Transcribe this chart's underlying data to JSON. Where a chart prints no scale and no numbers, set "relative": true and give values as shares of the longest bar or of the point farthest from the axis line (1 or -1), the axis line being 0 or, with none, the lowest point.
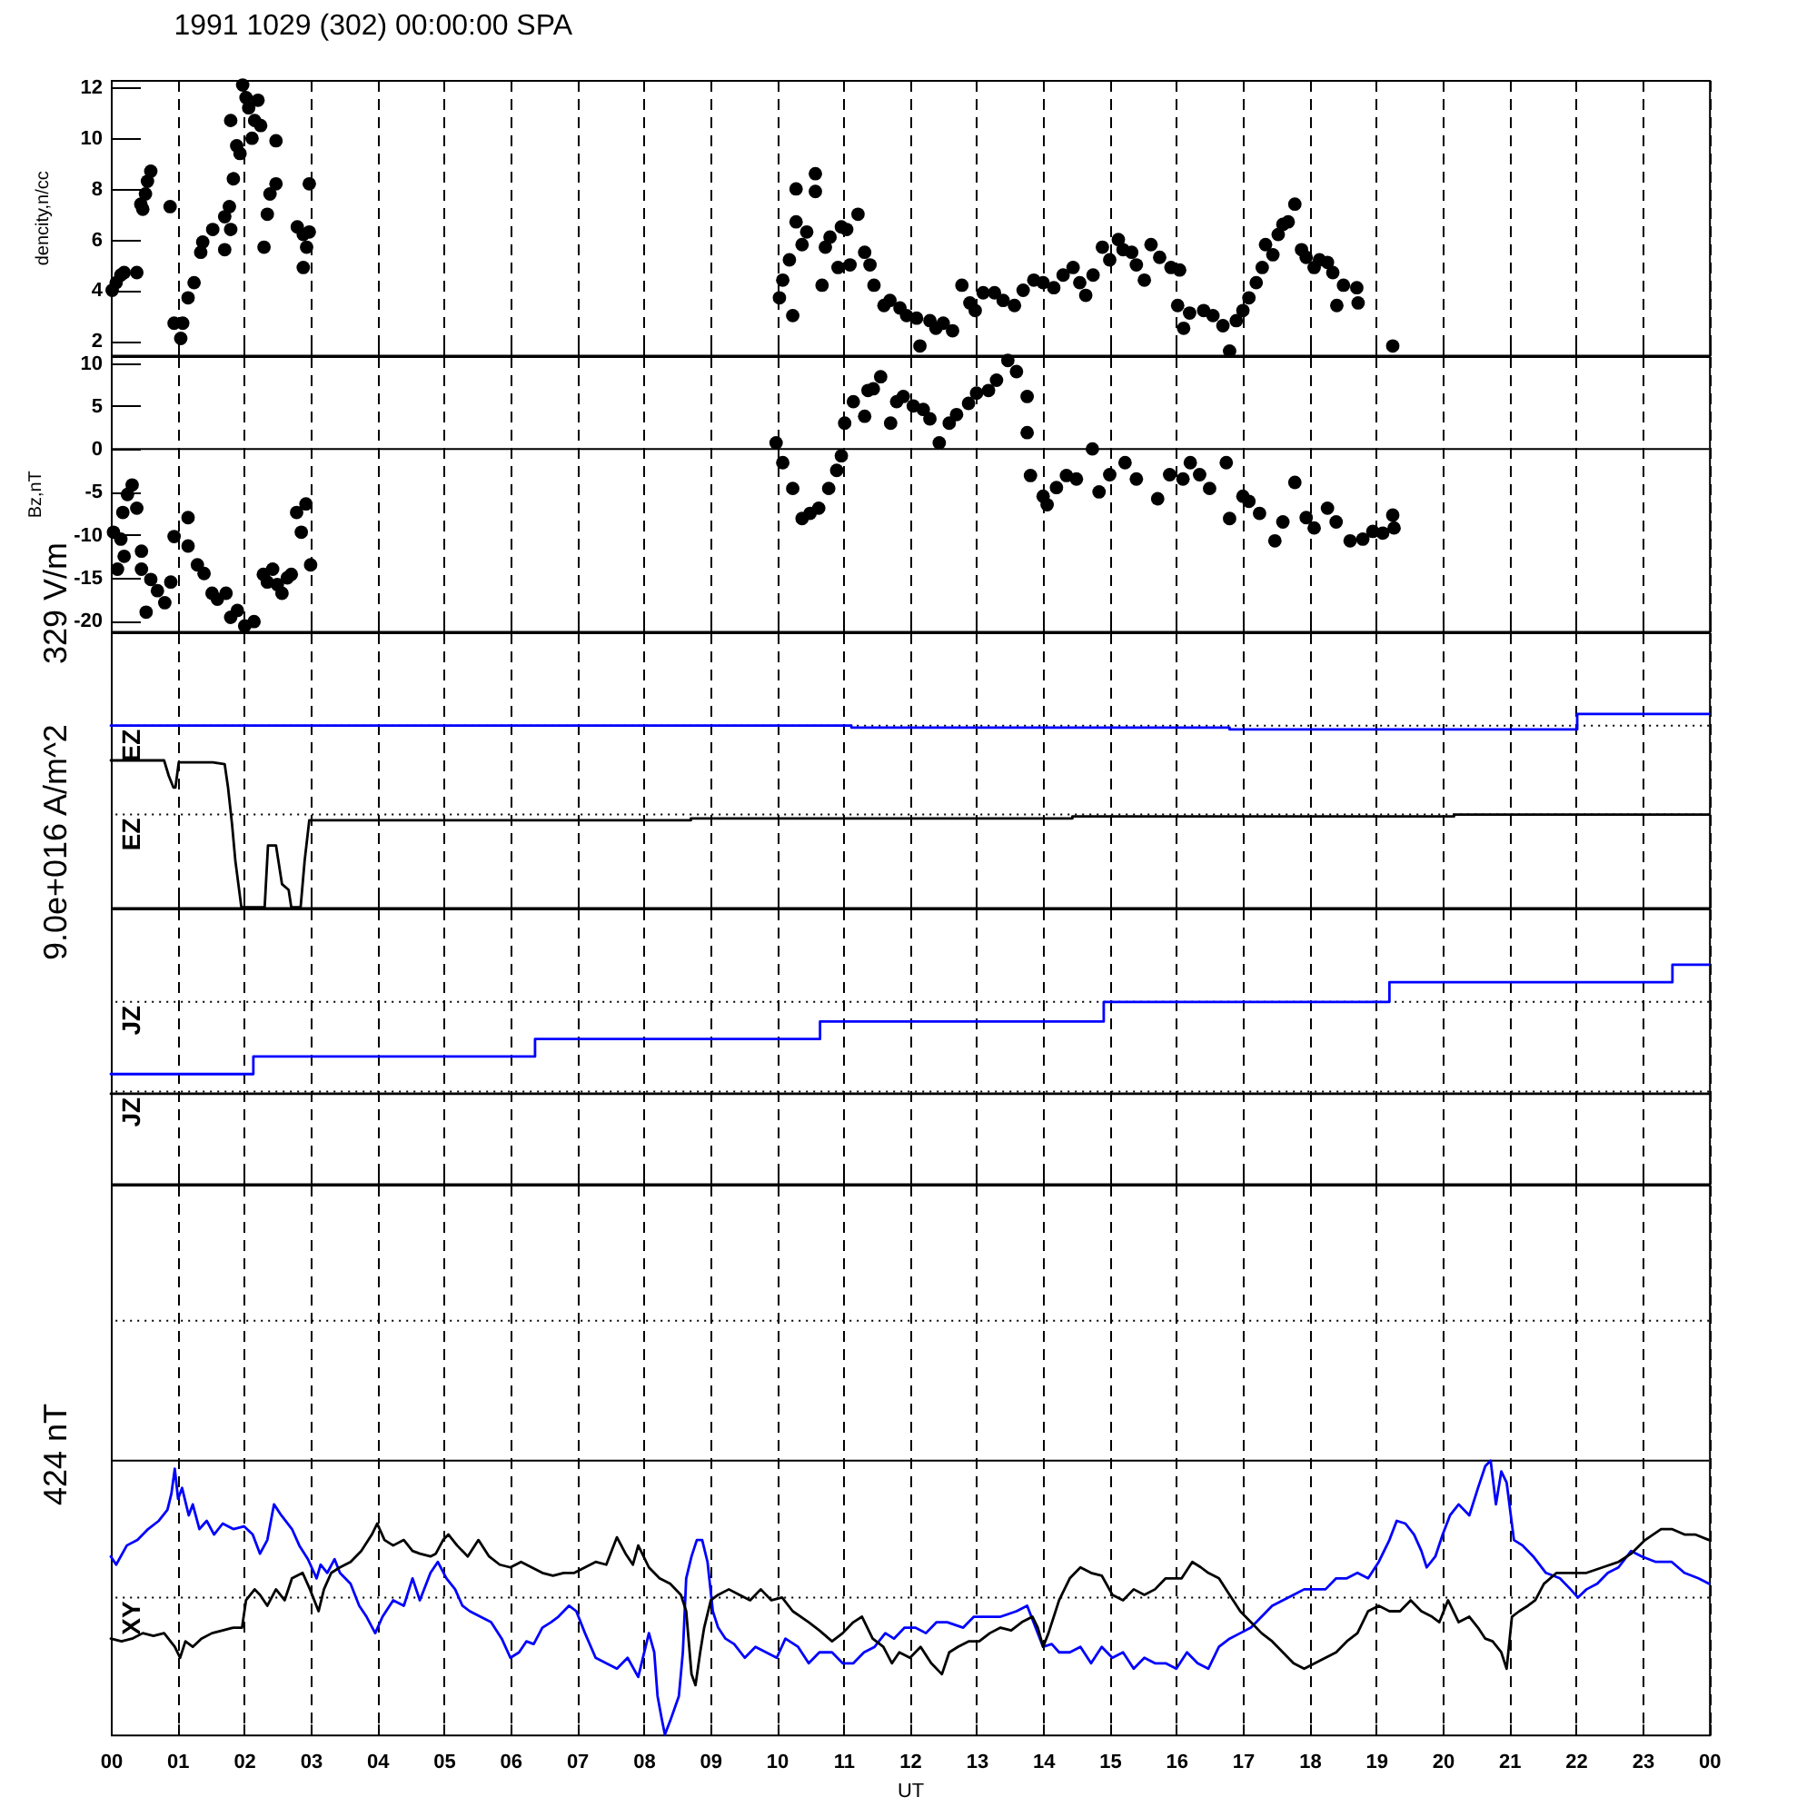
{
  "chart_data": [
    {
      "type": "scatter",
      "title": "1991 1029 (302) 00:00:00 SPA",
      "ylabel": "dencity,n/cc",
      "color": "#000000",
      "marker": "circle",
      "grid": "x",
      "tick_labels": "y",
      "xlim": [
        0,
        24
      ],
      "xticks": [
        0,
        1,
        2,
        3,
        4,
        5,
        6,
        7,
        8,
        9,
        10,
        11,
        12,
        13,
        14,
        15,
        16,
        17,
        18,
        19,
        20,
        21,
        22,
        23,
        24
      ],
      "ylim": [
        1.45,
        12.3
      ],
      "yticks": [
        2,
        4,
        6,
        8,
        10,
        12
      ],
      "x": [
        0.02,
        0.08,
        0.15,
        0.2,
        0.39,
        0.45,
        0.48,
        0.52,
        0.55,
        0.6,
        0.89,
        0.95,
        1.05,
        1.08,
        1.16,
        1.25,
        1.35,
        1.38,
        1.53,
        1.71,
        1.8,
        1.71,
        1.78,
        1.8,
        1.89,
        1.94,
        1.84,
        1.98,
        2.03,
        2.07,
        2.16,
        2.21,
        2.12,
        2.25,
        2.48,
        2.3,
        2.35,
        2.39,
        2.48,
        2.8,
        2.89,
        2.89,
        2.98,
        2.94,
        2.98,
        10.04,
        10.09,
        10.19,
        10.24,
        10.29,
        10.29,
        10.58,
        10.58,
        10.38,
        10.68,
        10.73,
        10.97,
        10.92,
        11.22,
        11.32,
        11.46,
        11.61,
        11.85,
        12.1,
        12.15,
        12.39,
        12.64,
        12.78,
        12.98,
        13.27,
        13.57,
        13.86,
        14.16,
        14.45,
        14.64,
        14.89,
        15.13,
        15.33,
        15.62,
        15.52,
        15.92,
        16.02,
        16.11,
        16.41,
        16.7,
        16.8,
        17.0,
        17.09,
        17.29,
        17.34,
        17.53,
        17.68,
        17.78,
        17.88,
        18.07,
        18.27,
        18.41,
        18.51,
        18.71,
        18.73,
        19.25,
        11.7,
        11.95,
        12.3,
        12.5,
        12.9,
        13.1,
        13.4,
        13.7,
        14.0,
        14.3,
        14.55,
        14.75,
        15.0,
        15.2,
        15.4,
        15.75,
        16.05,
        16.2,
        16.55,
        16.9,
        17.2,
        17.45,
        17.6,
        17.95,
        18.15,
        18.35,
        10.45,
        10.8,
        11.05,
        11.1,
        11.4
      ],
      "values": [
        4.0,
        4.3,
        4.6,
        4.7,
        4.7,
        7.4,
        7.2,
        7.8,
        8.3,
        8.7,
        7.3,
        2.7,
        2.1,
        2.7,
        3.7,
        4.3,
        5.5,
        5.9,
        6.4,
        6.9,
        6.4,
        5.6,
        7.3,
        10.7,
        9.7,
        9.4,
        8.4,
        12.1,
        11.6,
        11.2,
        10.7,
        11.5,
        10.0,
        10.5,
        9.9,
        5.7,
        7.0,
        7.8,
        8.2,
        6.5,
        6.2,
        4.9,
        8.2,
        5.7,
        6.3,
        3.7,
        4.4,
        5.2,
        3.0,
        6.7,
        8.0,
        8.6,
        7.9,
        5.8,
        4.2,
        5.7,
        6.5,
        4.9,
        7.0,
        5.5,
        4.2,
        3.4,
        3.3,
        2.9,
        1.8,
        2.5,
        2.4,
        4.2,
        3.2,
        3.9,
        3.4,
        4.4,
        4.1,
        4.9,
        3.8,
        5.7,
        6.0,
        5.5,
        5.8,
        4.4,
        4.9,
        3.4,
        2.5,
        3.2,
        2.6,
        1.6,
        3.2,
        3.7,
        4.9,
        5.8,
        6.2,
        6.7,
        7.4,
        5.6,
        4.9,
        5.1,
        3.4,
        4.2,
        4.1,
        3.5,
        1.8,
        3.6,
        3.0,
        2.8,
        2.7,
        3.5,
        3.9,
        3.6,
        4.0,
        4.3,
        4.6,
        4.3,
        4.6,
        5.2,
        5.6,
        5.0,
        5.3,
        4.8,
        3.1,
        3.0,
        2.8,
        4.3,
        5.4,
        6.6,
        5.3,
        5.2,
        4.7,
        6.3,
        6.1,
        6.4,
        5.0,
        5.0
      ]
    },
    {
      "type": "scatter",
      "ylabel": "Bz,nT",
      "color": "#000000",
      "marker": "circle",
      "grid": "x",
      "tick_labels": "y",
      "xlim": [
        0,
        24
      ],
      "xticks": [
        0,
        1,
        2,
        3,
        4,
        5,
        6,
        7,
        8,
        9,
        10,
        11,
        12,
        13,
        14,
        15,
        16,
        17,
        18,
        19,
        20,
        21,
        22,
        23,
        24
      ],
      "ylim": [
        -21.2,
        10.8
      ],
      "yticks": [
        -20,
        -15,
        -10,
        -5,
        0,
        5,
        10
      ],
      "ref_lines": [
        {
          "axis": "y",
          "value": 0,
          "line_style": "solid",
          "color": "#000000"
        }
      ],
      "x": [
        0.04,
        0.1,
        0.18,
        0.25,
        0.32,
        0.39,
        0.46,
        0.46,
        0.6,
        0.53,
        0.81,
        0.95,
        1.16,
        1.16,
        1.3,
        1.52,
        1.73,
        1.8,
        2.01,
        2.15,
        2.29,
        2.43,
        2.57,
        2.71,
        2.79,
        2.93,
        2.86,
        3.0,
        0.7,
        0.9,
        1.4,
        1.6,
        1.9,
        2.35,
        2.5,
        2.65,
        0.2,
        0.15,
        9.99,
        10.09,
        10.24,
        10.38,
        10.63,
        10.78,
        10.97,
        11.02,
        11.32,
        11.37,
        11.56,
        11.71,
        11.9,
        12.2,
        12.44,
        12.59,
        12.88,
        13.18,
        13.47,
        13.76,
        13.76,
        13.81,
        14.06,
        14.35,
        14.74,
        14.84,
        15.23,
        15.72,
        16.21,
        16.5,
        16.75,
        16.8,
        17.09,
        17.48,
        17.78,
        18.07,
        18.27,
        18.61,
        18.95,
        19.25,
        19.27,
        10.5,
        10.9,
        11.15,
        11.45,
        11.8,
        12.05,
        12.3,
        12.7,
        13.0,
        13.3,
        13.6,
        14.0,
        14.2,
        14.5,
        15.0,
        15.4,
        15.9,
        16.1,
        16.35,
        17.0,
        17.25,
        17.6,
        17.95,
        18.4,
        18.8,
        19.1
      ],
      "values": [
        -9.7,
        -14.0,
        -7.4,
        -5.3,
        -4.2,
        -6.9,
        -11.9,
        -14.0,
        -15.2,
        -19.0,
        -17.9,
        -10.2,
        -8.0,
        -11.3,
        -13.5,
        -16.8,
        -16.8,
        -19.6,
        -20.6,
        -20.1,
        -14.6,
        -14.0,
        -16.8,
        -14.6,
        -7.4,
        -6.4,
        -9.7,
        -13.5,
        -16.5,
        -15.5,
        -14.5,
        -17.5,
        -18.8,
        -15.5,
        -15.8,
        -15.0,
        -12.5,
        -10.5,
        0.7,
        -1.6,
        -4.6,
        -8.1,
        -6.9,
        -4.6,
        -0.8,
        3.0,
        3.8,
        6.8,
        8.4,
        3.0,
        6.1,
        4.6,
        0.7,
        3.0,
        5.3,
        6.8,
        10.3,
        6.1,
        1.9,
        -3.1,
        -6.5,
        -3.1,
        0.0,
        -5.0,
        -1.6,
        -5.8,
        -1.6,
        -4.6,
        -1.6,
        -8.1,
        -6.1,
        -10.7,
        -3.9,
        -9.2,
        -6.9,
        -10.7,
        -9.6,
        -7.7,
        -9.2,
        -7.5,
        -2.5,
        5.5,
        7.0,
        5.5,
        5.0,
        3.5,
        4.0,
        6.5,
        8.0,
        9.0,
        -5.5,
        -4.5,
        -3.5,
        -3.0,
        -3.5,
        -3.0,
        -3.5,
        -3.0,
        -5.5,
        -7.5,
        -8.5,
        -8.0,
        -8.5,
        -10.5,
        -9.8
      ]
    },
    {
      "type": "line",
      "relative": true,
      "ylabel": "329 V/m",
      "grid": "x",
      "tick_labels": false,
      "xlim": [
        0,
        24
      ],
      "xticks": [
        0,
        1,
        2,
        3,
        4,
        5,
        6,
        7,
        8,
        9,
        10,
        11,
        12,
        13,
        14,
        15,
        16,
        17,
        18,
        19,
        20,
        21,
        22,
        23,
        24
      ],
      "ref_lines": [
        {
          "axis": "y",
          "value": 0.94,
          "label": "EZ",
          "line_style": "dotted",
          "color": "#000000"
        },
        {
          "axis": "y",
          "value": 0.48,
          "label": "EZ",
          "line_style": "dotted",
          "color": "#000000"
        }
      ],
      "series": [
        {
          "type": "step",
          "color": "#0000ff",
          "x": [
            0,
            5.44,
            11.12,
            16.8,
            22.02,
            24
          ],
          "values": [
            0.94,
            0.94,
            0.93,
            0.92,
            1.0,
            1.0
          ]
        },
        {
          "color": "#000000",
          "x": [
            0,
            0.8,
            0.87,
            0.94,
            0.97,
            1.02,
            1.39,
            1.53,
            1.71,
            1.76,
            1.82,
            1.87,
            1.96,
            2.31,
            2.36,
            2.48,
            2.57,
            2.67,
            2.71,
            2.85,
            2.91,
            2.98,
            8.71,
            8.71,
            14.44,
            14.44,
            20.17,
            20.17,
            24
          ],
          "values": [
            0.76,
            0.76,
            0.68,
            0.62,
            0.62,
            0.75,
            0.75,
            0.75,
            0.74,
            0.62,
            0.43,
            0.24,
            0,
            0,
            0.32,
            0.32,
            0.12,
            0.09,
            0,
            0,
            0.24,
            0.45,
            0.45,
            0.46,
            0.46,
            0.47,
            0.47,
            0.48,
            0.48
          ]
        }
      ]
    },
    {
      "type": "line",
      "relative": true,
      "ylabel": "9.0e+016 A/m^2",
      "grid": "x",
      "tick_labels": false,
      "xlim": [
        0,
        24
      ],
      "xticks": [
        0,
        1,
        2,
        3,
        4,
        5,
        6,
        7,
        8,
        9,
        10,
        11,
        12,
        13,
        14,
        15,
        16,
        17,
        18,
        19,
        20,
        21,
        22,
        23,
        24
      ],
      "ref_lines": [
        {
          "axis": "y",
          "value": 0.83,
          "label": "JZ",
          "line_style": "dotted",
          "color": "#000000"
        },
        {
          "axis": "y",
          "value": 0.42,
          "line_style": "dotted",
          "color": "#000000"
        }
      ],
      "series": [
        {
          "type": "step",
          "color": "#0000ff",
          "x": [
            0,
            2.14,
            6.37,
            10.65,
            14.91,
            19.2,
            23.45,
            24
          ],
          "values": [
            0.5,
            0.58,
            0.66,
            0.74,
            0.83,
            0.92,
            1.0,
            1.0
          ]
        },
        {
          "name": "JZ",
          "color": "#000000",
          "x": [
            0,
            24
          ],
          "values": [
            0.41,
            0.41
          ]
        }
      ]
    },
    {
      "type": "line",
      "relative": true,
      "ylabel": "424 nT",
      "xlabel": "UT",
      "grid": "x",
      "tick_labels": "x",
      "xlim": [
        0,
        24
      ],
      "xticks": [
        {
          "value": 0,
          "label": "00"
        },
        {
          "value": 1,
          "label": "01"
        },
        {
          "value": 2,
          "label": "02"
        },
        {
          "value": 3,
          "label": "03"
        },
        {
          "value": 4,
          "label": "04"
        },
        {
          "value": 5,
          "label": "05"
        },
        {
          "value": 6,
          "label": "06"
        },
        {
          "value": 7,
          "label": "07"
        },
        {
          "value": 8,
          "label": "08"
        },
        {
          "value": 9,
          "label": "09"
        },
        {
          "value": 10,
          "label": "10"
        },
        {
          "value": 11,
          "label": "11"
        },
        {
          "value": 12,
          "label": "12"
        },
        {
          "value": 13,
          "label": "13"
        },
        {
          "value": 14,
          "label": "14"
        },
        {
          "value": 15,
          "label": "15"
        },
        {
          "value": 16,
          "label": "16"
        },
        {
          "value": 17,
          "label": "17"
        },
        {
          "value": 18,
          "label": "18"
        },
        {
          "value": 19,
          "label": "19"
        },
        {
          "value": 20,
          "label": "20"
        },
        {
          "value": 21,
          "label": "21"
        },
        {
          "value": 22,
          "label": "22"
        },
        {
          "value": 23,
          "label": "23"
        },
        {
          "value": 24,
          "label": "00"
        }
      ],
      "ref_lines": [
        {
          "axis": "y",
          "value": 0.5,
          "label": "XY",
          "line_style": "dotted",
          "color": "#000000"
        },
        {
          "axis": "y",
          "value": 1.0,
          "line_style": "solid",
          "color": "#000000"
        },
        {
          "axis": "y",
          "value": 1.51,
          "line_style": "dotted",
          "color": "#000000"
        }
      ],
      "series": [
        {
          "color": "#0000ff",
          "x": [
            0,
            0.08,
            0.24,
            0.4,
            0.56,
            0.72,
            0.85,
            0.91,
            0.96,
            1.01,
            1.07,
            1.17,
            1.23,
            1.33,
            1.44,
            1.55,
            1.68,
            1.84,
            2.0,
            2.13,
            2.24,
            2.35,
            2.45,
            2.56,
            2.72,
            2.83,
            2.96,
            3.09,
            3.15,
            3.25,
            3.36,
            3.44,
            3.6,
            3.73,
            3.84,
            3.97,
            4.08,
            4.24,
            4.4,
            4.53,
            4.64,
            4.8,
            4.91,
            5.04,
            5.17,
            5.28,
            5.39,
            5.55,
            5.71,
            5.87,
            6.0,
            6.13,
            6.24,
            6.35,
            6.48,
            6.61,
            6.72,
            6.88,
            6.99,
            7.12,
            7.28,
            7.44,
            7.6,
            7.76,
            7.92,
            8.08,
            8.16,
            8.21,
            8.27,
            8.32,
            8.4,
            8.53,
            8.59,
            8.64,
            8.72,
            8.8,
            8.88,
            8.96,
            9.04,
            9.12,
            9.23,
            9.36,
            9.52,
            9.68,
            9.84,
            10.0,
            10.13,
            10.32,
            10.48,
            10.64,
            10.83,
            10.99,
            11.15,
            11.31,
            11.47,
            11.63,
            11.76,
            11.92,
            12.08,
            12.24,
            12.4,
            12.56,
            12.8,
            12.96,
            13.12,
            13.36,
            13.6,
            13.76,
            13.92,
            14.0,
            14.13,
            14.24,
            14.4,
            14.56,
            14.72,
            14.88,
            15.04,
            15.2,
            15.36,
            15.52,
            15.68,
            15.84,
            16.0,
            16.16,
            16.32,
            16.48,
            16.64,
            16.8,
            16.96,
            17.12,
            17.28,
            17.44,
            17.6,
            17.76,
            17.92,
            18.08,
            18.24,
            18.4,
            18.56,
            18.72,
            18.88,
            19.04,
            19.2,
            19.31,
            19.44,
            19.57,
            19.68,
            19.76,
            19.89,
            20.0,
            20.11,
            20.24,
            20.4,
            20.53,
            20.64,
            20.72,
            20.8,
            20.88,
            20.96,
            21.07,
            21.2,
            21.36,
            21.55,
            21.76,
            21.92,
            22.03,
            22.16,
            22.32,
            22.48,
            22.64,
            22.83,
            22.99,
            23.2,
            23.44,
            23.63,
            23.84,
            24.0
          ],
          "values": [
            0.65,
            0.62,
            0.69,
            0.71,
            0.75,
            0.78,
            0.82,
            0.88,
            0.97,
            0.86,
            0.9,
            0.8,
            0.84,
            0.75,
            0.78,
            0.73,
            0.77,
            0.75,
            0.76,
            0.73,
            0.66,
            0.71,
            0.84,
            0.8,
            0.75,
            0.69,
            0.64,
            0.57,
            0.62,
            0.59,
            0.64,
            0.59,
            0.55,
            0.47,
            0.43,
            0.37,
            0.43,
            0.49,
            0.47,
            0.57,
            0.49,
            0.59,
            0.63,
            0.57,
            0.53,
            0.47,
            0.45,
            0.43,
            0.41,
            0.35,
            0.28,
            0.3,
            0.34,
            0.33,
            0.39,
            0.41,
            0.43,
            0.47,
            0.45,
            0.37,
            0.28,
            0.26,
            0.24,
            0.28,
            0.21,
            0.37,
            0.3,
            0.14,
            0.06,
            0.0,
            0.05,
            0.14,
            0.3,
            0.57,
            0.65,
            0.71,
            0.71,
            0.63,
            0.45,
            0.39,
            0.35,
            0.33,
            0.28,
            0.32,
            0.3,
            0.28,
            0.35,
            0.32,
            0.26,
            0.3,
            0.3,
            0.26,
            0.26,
            0.3,
            0.32,
            0.37,
            0.35,
            0.39,
            0.39,
            0.37,
            0.41,
            0.41,
            0.39,
            0.43,
            0.43,
            0.43,
            0.45,
            0.47,
            0.37,
            0.32,
            0.33,
            0.3,
            0.3,
            0.32,
            0.26,
            0.32,
            0.28,
            0.3,
            0.24,
            0.28,
            0.26,
            0.26,
            0.24,
            0.3,
            0.26,
            0.24,
            0.32,
            0.35,
            0.37,
            0.39,
            0.43,
            0.47,
            0.49,
            0.51,
            0.53,
            0.53,
            0.53,
            0.57,
            0.57,
            0.59,
            0.57,
            0.63,
            0.71,
            0.78,
            0.77,
            0.73,
            0.67,
            0.61,
            0.65,
            0.73,
            0.8,
            0.84,
            0.8,
            0.9,
            0.98,
            1.0,
            0.84,
            0.96,
            0.92,
            0.71,
            0.69,
            0.65,
            0.59,
            0.57,
            0.53,
            0.5,
            0.53,
            0.55,
            0.59,
            0.61,
            0.67,
            0.65,
            0.63,
            0.63,
            0.59,
            0.57,
            0.55
          ]
        },
        {
          "color": "#000000",
          "x": [
            0,
            0.16,
            0.32,
            0.48,
            0.64,
            0.8,
            0.96,
            1.04,
            1.12,
            1.23,
            1.36,
            1.52,
            1.68,
            1.84,
            1.97,
            2.03,
            2.16,
            2.24,
            2.35,
            2.48,
            2.61,
            2.72,
            2.88,
            2.99,
            3.12,
            3.2,
            3.31,
            3.44,
            3.6,
            3.76,
            3.92,
            4.0,
            4.11,
            4.24,
            4.4,
            4.53,
            4.64,
            4.8,
            4.88,
            4.99,
            5.07,
            5.2,
            5.36,
            5.52,
            5.68,
            5.84,
            6.0,
            6.16,
            6.32,
            6.48,
            6.64,
            6.8,
            6.96,
            7.12,
            7.28,
            7.44,
            7.6,
            7.73,
            7.84,
            7.92,
            8.08,
            8.24,
            8.4,
            8.56,
            8.64,
            8.72,
            8.78,
            8.85,
            8.91,
            9.01,
            9.12,
            9.28,
            9.44,
            9.6,
            9.76,
            9.92,
            10.08,
            10.24,
            10.48,
            10.64,
            10.83,
            10.99,
            11.15,
            11.28,
            11.44,
            11.6,
            11.73,
            11.84,
            12.0,
            12.16,
            12.32,
            12.48,
            12.59,
            12.72,
            12.88,
            13.04,
            13.2,
            13.36,
            13.52,
            13.68,
            13.84,
            13.92,
            14.0,
            14.08,
            14.24,
            14.4,
            14.56,
            14.72,
            14.88,
            15.04,
            15.2,
            15.36,
            15.52,
            15.68,
            15.84,
            16.08,
            16.24,
            16.37,
            16.48,
            16.64,
            16.8,
            16.96,
            17.12,
            17.28,
            17.44,
            17.6,
            17.76,
            17.92,
            18.08,
            18.24,
            18.4,
            18.56,
            18.72,
            18.88,
            19.04,
            19.2,
            19.36,
            19.52,
            19.68,
            19.84,
            19.95,
            20.08,
            20.24,
            20.4,
            20.53,
            20.64,
            20.75,
            20.88,
            20.96,
            21.04,
            21.15,
            21.28,
            21.39,
            21.52,
            21.71,
            21.92,
            22.16,
            22.4,
            22.64,
            22.83,
            23.04,
            23.28,
            23.44,
            23.63,
            23.79,
            24.0
          ],
          "values": [
            0.35,
            0.34,
            0.35,
            0.37,
            0.36,
            0.37,
            0.32,
            0.28,
            0.34,
            0.32,
            0.35,
            0.37,
            0.38,
            0.39,
            0.39,
            0.49,
            0.53,
            0.51,
            0.47,
            0.53,
            0.49,
            0.57,
            0.59,
            0.53,
            0.45,
            0.53,
            0.59,
            0.61,
            0.63,
            0.67,
            0.73,
            0.77,
            0.71,
            0.69,
            0.71,
            0.67,
            0.66,
            0.65,
            0.66,
            0.71,
            0.73,
            0.69,
            0.65,
            0.71,
            0.65,
            0.62,
            0.61,
            0.63,
            0.61,
            0.59,
            0.58,
            0.59,
            0.59,
            0.61,
            0.63,
            0.62,
            0.72,
            0.66,
            0.62,
            0.69,
            0.61,
            0.57,
            0.55,
            0.51,
            0.45,
            0.22,
            0.18,
            0.3,
            0.39,
            0.49,
            0.51,
            0.53,
            0.51,
            0.49,
            0.53,
            0.49,
            0.5,
            0.45,
            0.41,
            0.38,
            0.34,
            0.37,
            0.41,
            0.43,
            0.35,
            0.32,
            0.26,
            0.3,
            0.28,
            0.32,
            0.26,
            0.22,
            0.3,
            0.32,
            0.34,
            0.34,
            0.37,
            0.39,
            0.38,
            0.41,
            0.43,
            0.39,
            0.32,
            0.37,
            0.49,
            0.57,
            0.61,
            0.59,
            0.58,
            0.51,
            0.49,
            0.53,
            0.51,
            0.53,
            0.57,
            0.57,
            0.63,
            0.61,
            0.59,
            0.57,
            0.51,
            0.45,
            0.41,
            0.37,
            0.34,
            0.3,
            0.26,
            0.24,
            0.26,
            0.28,
            0.3,
            0.34,
            0.37,
            0.45,
            0.47,
            0.45,
            0.45,
            0.49,
            0.45,
            0.43,
            0.41,
            0.49,
            0.41,
            0.43,
            0.39,
            0.35,
            0.34,
            0.3,
            0.24,
            0.43,
            0.45,
            0.47,
            0.49,
            0.55,
            0.59,
            0.59,
            0.59,
            0.61,
            0.63,
            0.66,
            0.71,
            0.75,
            0.75,
            0.73,
            0.73,
            0.71
          ]
        }
      ]
    }
  ]
}
